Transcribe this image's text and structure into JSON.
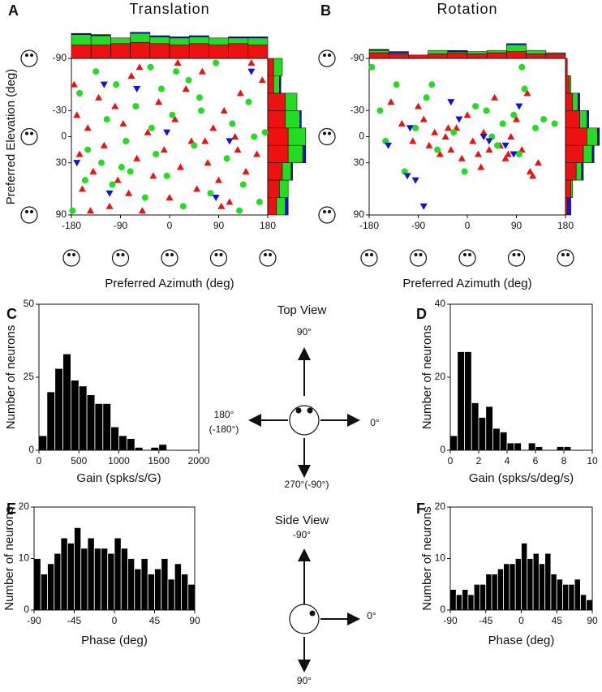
{
  "chart_data": [
    {
      "type": "scatter",
      "panel": "A",
      "title": "Translation",
      "xlabel": "Preferred Azimuth (deg)",
      "ylabel": "Preferred Elevation (deg)",
      "xlim": [
        -180,
        180
      ],
      "ylim": [
        -90,
        90
      ],
      "y_reversed": true,
      "xticks": [
        -180,
        -90,
        0,
        90,
        180
      ],
      "yticks": [
        -90,
        -30,
        0,
        30,
        90
      ],
      "series": [
        {
          "color": "#ee1111",
          "marker": "triangle-up",
          "x": [
            -175,
            -170,
            -165,
            -160,
            -150,
            -140,
            -130,
            -120,
            -110,
            -100,
            -95,
            -85,
            -75,
            -70,
            -60,
            -50,
            -40,
            -30,
            -20,
            -10,
            0,
            10,
            20,
            30,
            40,
            50,
            60,
            70,
            80,
            90,
            100,
            110,
            120,
            130,
            140,
            150,
            160,
            170,
            -145,
            -55,
            15,
            65,
            95,
            125
          ],
          "y": [
            -60,
            -25,
            20,
            60,
            -10,
            40,
            -45,
            10,
            80,
            -35,
            50,
            -15,
            65,
            -70,
            25,
            85,
            -5,
            45,
            -40,
            15,
            70,
            -20,
            35,
            -55,
            5,
            60,
            -75,
            30,
            -10,
            50,
            -30,
            75,
            0,
            -50,
            40,
            -85,
            20,
            -65,
            85,
            -80,
            -85,
            5,
            80,
            15
          ]
        },
        {
          "color": "#22dd22",
          "marker": "circle",
          "x": [
            -178,
            -165,
            -150,
            -135,
            -125,
            -115,
            -105,
            -98,
            -80,
            -72,
            -62,
            -45,
            -35,
            -25,
            -15,
            -5,
            5,
            25,
            35,
            45,
            55,
            75,
            85,
            105,
            115,
            135,
            145,
            155,
            165,
            175,
            -155,
            -88,
            -33,
            12,
            58,
            128
          ],
          "y": [
            85,
            -50,
            15,
            -75,
            30,
            -20,
            55,
            -60,
            5,
            40,
            -35,
            70,
            -80,
            20,
            -55,
            45,
            -25,
            80,
            -65,
            10,
            -45,
            65,
            -85,
            25,
            -15,
            55,
            -40,
            0,
            75,
            -5,
            50,
            35,
            -10,
            -75,
            -30,
            85
          ]
        },
        {
          "color": "#1111dd",
          "marker": "triangle-down",
          "x": [
            -170,
            -110,
            -60,
            -5,
            85,
            110,
            150,
            -120
          ],
          "y": [
            30,
            65,
            -55,
            -5,
            70,
            5,
            -75,
            -60
          ]
        }
      ],
      "top_hist": {
        "bins": [
          -180,
          -144,
          -108,
          -72,
          -36,
          0,
          36,
          72,
          108,
          144,
          180
        ],
        "series": [
          {
            "color": "#ee1111",
            "values": [
              12,
              12,
              13,
              14,
              13,
              12,
              13,
              12,
              13,
              12
            ]
          },
          {
            "color": "#22dd22",
            "values": [
              9,
              8,
              5,
              8,
              6,
              6,
              6,
              6,
              5,
              6
            ]
          },
          {
            "color": "#1111dd",
            "values": [
              1,
              1,
              0,
              1,
              1,
              1,
              1,
              0,
              1,
              1
            ]
          }
        ]
      },
      "right_hist": {
        "bins": [
          -90,
          -70,
          -50,
          -30,
          -10,
          10,
          30,
          50,
          70,
          90
        ],
        "series": [
          {
            "color": "#ee1111",
            "values": [
              4,
              4,
              12,
              12,
              14,
              14,
              10,
              8,
              6
            ]
          },
          {
            "color": "#22dd22",
            "values": [
              6,
              4,
              8,
              10,
              12,
              10,
              6,
              6,
              6
            ]
          },
          {
            "color": "#1111dd",
            "values": [
              0,
              1,
              0,
              1,
              0,
              2,
              1,
              0,
              2
            ]
          }
        ]
      }
    },
    {
      "type": "scatter",
      "panel": "B",
      "title": "Rotation",
      "xlabel": "Preferred Azimuth (deg)",
      "xlim": [
        -180,
        180
      ],
      "ylim": [
        -90,
        90
      ],
      "y_reversed": true,
      "xticks": [
        -180,
        -90,
        0,
        90,
        180
      ],
      "yticks": [
        -90,
        -30,
        0,
        30,
        90
      ],
      "series": [
        {
          "color": "#ee1111",
          "marker": "triangle-up",
          "x": [
            -140,
            -120,
            -100,
            -80,
            -70,
            -60,
            -50,
            -40,
            -30,
            -20,
            -10,
            0,
            10,
            20,
            30,
            40,
            50,
            60,
            70,
            80,
            90,
            100,
            110,
            120,
            130,
            -90,
            -35,
            25,
            75,
            115
          ],
          "y": [
            -40,
            -15,
            5,
            -20,
            10,
            -5,
            20,
            0,
            15,
            -10,
            25,
            -25,
            5,
            20,
            -5,
            15,
            -45,
            10,
            25,
            0,
            -20,
            15,
            -50,
            45,
            30,
            -35,
            -10,
            35,
            20,
            40
          ]
        },
        {
          "color": "#22dd22",
          "marker": "circle",
          "x": [
            -175,
            -160,
            -130,
            -115,
            -95,
            -75,
            -55,
            -25,
            -5,
            15,
            35,
            55,
            65,
            85,
            95,
            105,
            125,
            140,
            160,
            -150,
            -65,
            45,
            100
          ],
          "y": [
            -80,
            -30,
            -60,
            40,
            -10,
            -45,
            15,
            -5,
            40,
            -35,
            -30,
            10,
            -15,
            -25,
            20,
            -55,
            -10,
            -20,
            -15,
            5,
            -60,
            0,
            -80
          ]
        },
        {
          "color": "#1111dd",
          "marker": "triangle-down",
          "x": [
            -145,
            -110,
            -95,
            -80,
            -30,
            -15,
            40,
            70,
            85,
            95,
            -105,
            30
          ],
          "y": [
            10,
            45,
            50,
            80,
            -40,
            -20,
            5,
            10,
            20,
            -35,
            -10,
            0
          ]
        }
      ],
      "top_hist": {
        "bins": [
          -180,
          -144,
          -108,
          -72,
          -36,
          0,
          36,
          72,
          108,
          144,
          180
        ],
        "series": [
          {
            "color": "#ee1111",
            "values": [
              5,
              4,
              3,
              4,
              5,
              4,
              5,
              6,
              4,
              4
            ]
          },
          {
            "color": "#22dd22",
            "values": [
              2,
              1,
              0,
              3,
              1,
              2,
              2,
              6,
              3,
              1
            ]
          },
          {
            "color": "#1111dd",
            "values": [
              1,
              1,
              0,
              0,
              1,
              0,
              0,
              1,
              0,
              0
            ]
          }
        ]
      },
      "right_hist": {
        "bins": [
          -90,
          -70,
          -50,
          -30,
          -10,
          10,
          30,
          50,
          70,
          90
        ],
        "series": [
          {
            "color": "#ee1111",
            "values": [
              1,
              2,
              4,
              8,
              12,
              10,
              6,
              3,
              1
            ]
          },
          {
            "color": "#22dd22",
            "values": [
              0,
              1,
              3,
              4,
              6,
              5,
              3,
              1,
              0
            ]
          },
          {
            "color": "#1111dd",
            "values": [
              0,
              0,
              1,
              1,
              1,
              1,
              1,
              0,
              2
            ]
          }
        ]
      }
    },
    {
      "type": "histogram",
      "panel": "C",
      "xlabel": "Gain (spks/s/G)",
      "ylabel": "Number of neurons",
      "color": "#000000",
      "bins": [
        0,
        100,
        200,
        300,
        400,
        500,
        600,
        700,
        800,
        900,
        1000,
        1100,
        1200,
        1300,
        1400,
        1500,
        1600
      ],
      "values": [
        5,
        20,
        28,
        33,
        24,
        22,
        19,
        16,
        16,
        8,
        5,
        4,
        1,
        0,
        1,
        2
      ],
      "xlim": [
        0,
        2000
      ],
      "ylim": [
        0,
        50
      ],
      "xticks": [
        0,
        500,
        1000,
        1500,
        2000
      ],
      "yticks": [
        0,
        25,
        50
      ]
    },
    {
      "type": "histogram",
      "panel": "D",
      "xlabel": "Gain (spks/s/deg/s)",
      "ylabel": "Number of neurons",
      "color": "#000000",
      "bins": [
        0,
        0.5,
        1,
        1.5,
        2,
        2.5,
        3,
        3.5,
        4,
        4.5,
        5,
        5.5,
        6,
        6.5,
        7,
        7.5,
        8,
        8.5
      ],
      "values": [
        4,
        27,
        27,
        13,
        9,
        12,
        6,
        5,
        2,
        2,
        0,
        2,
        1,
        0,
        0,
        1,
        1
      ],
      "xlim": [
        0,
        10
      ],
      "ylim": [
        0,
        40
      ],
      "xticks": [
        0,
        2,
        4,
        6,
        8,
        10
      ],
      "yticks": [
        0,
        20,
        40
      ]
    },
    {
      "type": "histogram",
      "panel": "E",
      "xlabel": "Phase (deg)",
      "ylabel": "Number of neurons",
      "color": "#000000",
      "bins": [
        -90,
        -82.5,
        -75,
        -67.5,
        -60,
        -52.5,
        -45,
        -37.5,
        -30,
        -22.5,
        -15,
        -7.5,
        0,
        7.5,
        15,
        22.5,
        30,
        37.5,
        45,
        52.5,
        60,
        67.5,
        75,
        82.5,
        90
      ],
      "values": [
        10,
        7,
        9,
        11,
        14,
        13,
        16,
        12,
        14,
        12,
        12,
        11,
        14,
        12,
        10,
        8,
        10,
        7,
        8,
        10,
        6,
        9,
        7,
        5
      ],
      "xlim": [
        -90,
        90
      ],
      "ylim": [
        0,
        20
      ],
      "xticks": [
        -90,
        -45,
        0,
        45,
        90
      ],
      "yticks": [
        0,
        10,
        20
      ]
    },
    {
      "type": "histogram",
      "panel": "F",
      "xlabel": "Phase (deg)",
      "ylabel": "Number of neurons",
      "color": "#000000",
      "bins": [
        -90,
        -82.5,
        -75,
        -67.5,
        -60,
        -52.5,
        -45,
        -37.5,
        -30,
        -22.5,
        -15,
        -7.5,
        0,
        7.5,
        15,
        22.5,
        30,
        37.5,
        45,
        52.5,
        60,
        67.5,
        75,
        82.5,
        90
      ],
      "values": [
        4,
        3,
        4,
        3,
        5,
        5,
        7,
        7,
        8,
        9,
        9,
        10,
        13,
        10,
        11,
        9,
        11,
        7,
        6,
        5,
        5,
        6,
        3,
        2
      ],
      "xlim": [
        -90,
        90
      ],
      "ylim": [
        0,
        20
      ],
      "xticks": [
        -90,
        -45,
        0,
        45,
        90
      ],
      "yticks": [
        0,
        10,
        20
      ]
    }
  ],
  "annotations": {
    "top_view": "Top View",
    "top_90": "90°",
    "top_180": "180°",
    "top_180b": "(-180°)",
    "top_0": "0°",
    "top_270": "270°(-90°)",
    "side_view": "Side View",
    "side_m90": "-90°",
    "side_0": "0°",
    "side_90": "90°"
  }
}
